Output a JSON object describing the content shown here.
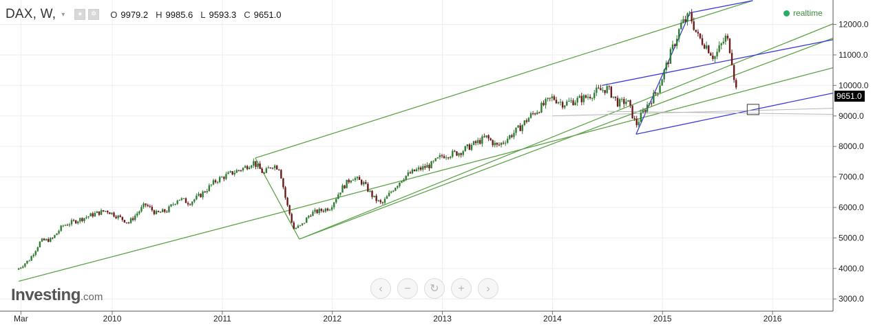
{
  "header": {
    "symbol": "DAX, W,",
    "dropdown_icon": "caret-down-icon",
    "eye_icon": "eye-icon",
    "settings_icon": "gear-icon",
    "ohlc": [
      {
        "key": "O",
        "value": "9979.2"
      },
      {
        "key": "H",
        "value": "9985.6"
      },
      {
        "key": "L",
        "value": "9593.3"
      },
      {
        "key": "C",
        "value": "9651.0"
      }
    ]
  },
  "realtime": {
    "label": "realtime",
    "color": "#27ae60"
  },
  "brand": {
    "main": "Investing",
    "suffix": ".com"
  },
  "nav": {
    "buttons": [
      {
        "name": "scroll-left-button",
        "glyph": "‹"
      },
      {
        "name": "zoom-out-button",
        "glyph": "−"
      },
      {
        "name": "reset-button",
        "glyph": "↻"
      },
      {
        "name": "zoom-in-button",
        "glyph": "+"
      },
      {
        "name": "scroll-right-button",
        "glyph": "›"
      }
    ]
  },
  "colors": {
    "up": "#2e7d32",
    "down": "#6b1a1a",
    "channel": "#5ea34a",
    "trend": "#3a3ad9",
    "support": "#b8b8b8"
  },
  "chart_data": {
    "type": "candlestick",
    "y_ticks": [
      "3000.0",
      "4000.0",
      "5000.0",
      "6000.0",
      "7000.0",
      "8000.0",
      "9000.0",
      "10000.0",
      "11000.0",
      "12000.0"
    ],
    "x_ticks": [
      {
        "label": "Mar",
        "t": 2009.17
      },
      {
        "label": "2010",
        "t": 2010.0
      },
      {
        "label": "2011",
        "t": 2011.0
      },
      {
        "label": "2012",
        "t": 2012.0
      },
      {
        "label": "2013",
        "t": 2013.0
      },
      {
        "label": "2014",
        "t": 2014.0
      },
      {
        "label": "2015",
        "t": 2015.0
      },
      {
        "label": "2016",
        "t": 2016.0
      }
    ],
    "xlim": [
      2008.98,
      2016.55
    ],
    "ylim": [
      2600,
      12800
    ],
    "last_price": "9651.0",
    "price_path": [
      [
        2009.15,
        4000
      ],
      [
        2009.25,
        4300
      ],
      [
        2009.35,
        4900
      ],
      [
        2009.45,
        4950
      ],
      [
        2009.55,
        5400
      ],
      [
        2009.7,
        5600
      ],
      [
        2009.85,
        5800
      ],
      [
        2009.95,
        5900
      ],
      [
        2010.05,
        5700
      ],
      [
        2010.15,
        5500
      ],
      [
        2010.3,
        6100
      ],
      [
        2010.4,
        5800
      ],
      [
        2010.5,
        5900
      ],
      [
        2010.6,
        6300
      ],
      [
        2010.7,
        6150
      ],
      [
        2010.8,
        6400
      ],
      [
        2010.95,
        6900
      ],
      [
        2011.1,
        7150
      ],
      [
        2011.2,
        7300
      ],
      [
        2011.28,
        7500
      ],
      [
        2011.38,
        7100
      ],
      [
        2011.45,
        7400
      ],
      [
        2011.52,
        7300
      ],
      [
        2011.58,
        6200
      ],
      [
        2011.65,
        5300
      ],
      [
        2011.72,
        5400
      ],
      [
        2011.8,
        5800
      ],
      [
        2011.9,
        5900
      ],
      [
        2011.98,
        6000
      ],
      [
        2012.08,
        6600
      ],
      [
        2012.18,
        7000
      ],
      [
        2012.28,
        6800
      ],
      [
        2012.38,
        6300
      ],
      [
        2012.45,
        6100
      ],
      [
        2012.55,
        6600
      ],
      [
        2012.65,
        7000
      ],
      [
        2012.75,
        7200
      ],
      [
        2012.9,
        7400
      ],
      [
        2013.0,
        7700
      ],
      [
        2013.15,
        7800
      ],
      [
        2013.3,
        8100
      ],
      [
        2013.4,
        8300
      ],
      [
        2013.5,
        8000
      ],
      [
        2013.6,
        8300
      ],
      [
        2013.7,
        8600
      ],
      [
        2013.8,
        9000
      ],
      [
        2013.9,
        9300
      ],
      [
        2014.0,
        9600
      ],
      [
        2014.1,
        9400
      ],
      [
        2014.2,
        9500
      ],
      [
        2014.3,
        9600
      ],
      [
        2014.4,
        9800
      ],
      [
        2014.5,
        9900
      ],
      [
        2014.6,
        9400
      ],
      [
        2014.68,
        9500
      ],
      [
        2014.76,
        8700
      ],
      [
        2014.85,
        9300
      ],
      [
        2014.95,
        9800
      ],
      [
        2015.02,
        10500
      ],
      [
        2015.1,
        11300
      ],
      [
        2015.17,
        12000
      ],
      [
        2015.25,
        12300
      ],
      [
        2015.32,
        11600
      ],
      [
        2015.4,
        11300
      ],
      [
        2015.47,
        10900
      ],
      [
        2015.53,
        11300
      ],
      [
        2015.58,
        11600
      ],
      [
        2015.62,
        11100
      ],
      [
        2015.65,
        10300
      ],
      [
        2015.68,
        9651
      ]
    ],
    "lines": [
      {
        "kind": "channel",
        "points": [
          [
            2009.15,
            3580
          ],
          [
            2016.55,
            10580
          ]
        ]
      },
      {
        "kind": "channel",
        "points": [
          [
            2011.7,
            4960
          ],
          [
            2016.55,
            12020
          ]
        ]
      },
      {
        "kind": "channel",
        "points": [
          [
            2011.3,
            7620
          ],
          [
            2015.82,
            12780
          ]
        ]
      },
      {
        "kind": "channel",
        "points": [
          [
            2011.3,
            7620
          ],
          [
            2011.7,
            4960
          ]
        ]
      },
      {
        "kind": "channel",
        "points": [
          [
            2011.7,
            4960
          ],
          [
            2016.55,
            11550
          ]
        ]
      },
      {
        "kind": "trend",
        "points": [
          [
            2014.45,
            10000
          ],
          [
            2016.55,
            11500
          ]
        ]
      },
      {
        "kind": "trend",
        "points": [
          [
            2014.76,
            8400
          ],
          [
            2016.55,
            9750
          ]
        ]
      },
      {
        "kind": "trend",
        "points": [
          [
            2014.76,
            8400
          ],
          [
            2015.25,
            12380
          ]
        ]
      },
      {
        "kind": "trend",
        "points": [
          [
            2015.25,
            12380
          ],
          [
            2015.82,
            12780
          ]
        ]
      },
      {
        "kind": "support",
        "points": [
          [
            2014.0,
            9000
          ],
          [
            2016.55,
            9250
          ]
        ]
      },
      {
        "kind": "support",
        "points": [
          [
            2014.5,
            9150
          ],
          [
            2016.55,
            9050
          ]
        ]
      }
    ]
  }
}
